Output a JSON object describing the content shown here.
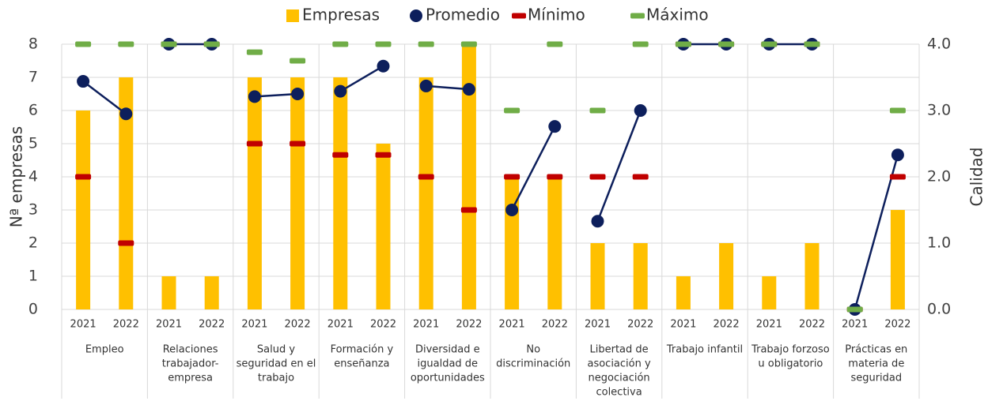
{
  "chart_data": {
    "type": "bar-line",
    "legend": "top",
    "grid": true,
    "ylabel": "Nª empresas",
    "y2label": "Calidad",
    "ylim": [
      0,
      8
    ],
    "yticks": [
      0,
      1,
      2,
      3,
      4,
      5,
      6,
      7,
      8
    ],
    "y2lim": [
      0,
      4
    ],
    "y2ticks": [
      {
        "value": 0,
        "label": "0.0"
      },
      {
        "value": 1,
        "label": "1.0"
      },
      {
        "value": 2,
        "label": "2.0"
      },
      {
        "value": 3,
        "label": "3.0"
      },
      {
        "value": 4,
        "label": "4.0"
      }
    ],
    "categories": [
      "2021",
      "2022",
      "2021",
      "2022",
      "2021",
      "2022",
      "2021",
      "2022",
      "2021",
      "2022",
      "2021",
      "2022",
      "2021",
      "2022",
      "2021",
      "2022",
      "2021",
      "2022",
      "2021",
      "2022"
    ],
    "groups": [
      [
        "Empleo"
      ],
      [
        "Relaciones",
        "trabajador-",
        "empresa"
      ],
      [
        "Salud y",
        "seguridad en el",
        "trabajo"
      ],
      [
        "Formación y",
        "enseñanza"
      ],
      [
        "Diversidad e",
        "igualdad de",
        "oportunidades"
      ],
      [
        "No",
        "discriminación"
      ],
      [
        "Libertad de",
        "asociación y",
        "negociación",
        "colectiva"
      ],
      [
        "Trabajo infantil"
      ],
      [
        "Trabajo forzoso",
        "u obligatorio"
      ],
      [
        "Prácticas en",
        "materia de",
        "seguridad"
      ]
    ],
    "series": [
      {
        "name": "Empresas",
        "type": "bar",
        "color": "#FFC000",
        "values": [
          6,
          7,
          1,
          1,
          7,
          7,
          7,
          5,
          7,
          8,
          4,
          4,
          2,
          2,
          1,
          2,
          1,
          2,
          0,
          3
        ]
      },
      {
        "name": "Promedio",
        "type": "line",
        "axis": "y2",
        "color": "#0D1F5C",
        "values": [
          3.44,
          2.95,
          4,
          4,
          3.21,
          3.25,
          3.29,
          3.67,
          3.37,
          3.32,
          1.5,
          2.76,
          1.33,
          3,
          4,
          4,
          4,
          4,
          0,
          2.33
        ]
      },
      {
        "name": "Mínimo",
        "type": "dash",
        "axis": "y2",
        "color": "#C00000",
        "values": [
          2,
          1,
          4,
          4,
          2.5,
          2.5,
          2.33,
          2.33,
          2,
          1.5,
          2,
          2,
          2,
          2,
          4,
          4,
          4,
          4,
          0,
          2
        ]
      },
      {
        "name": "Máximo",
        "type": "dash",
        "axis": "y2",
        "color": "#70AD47",
        "values": [
          4,
          4,
          4,
          4,
          3.88,
          3.75,
          4,
          4,
          4,
          4,
          3,
          4,
          3,
          4,
          4,
          4,
          4,
          4,
          0,
          3
        ]
      }
    ]
  }
}
